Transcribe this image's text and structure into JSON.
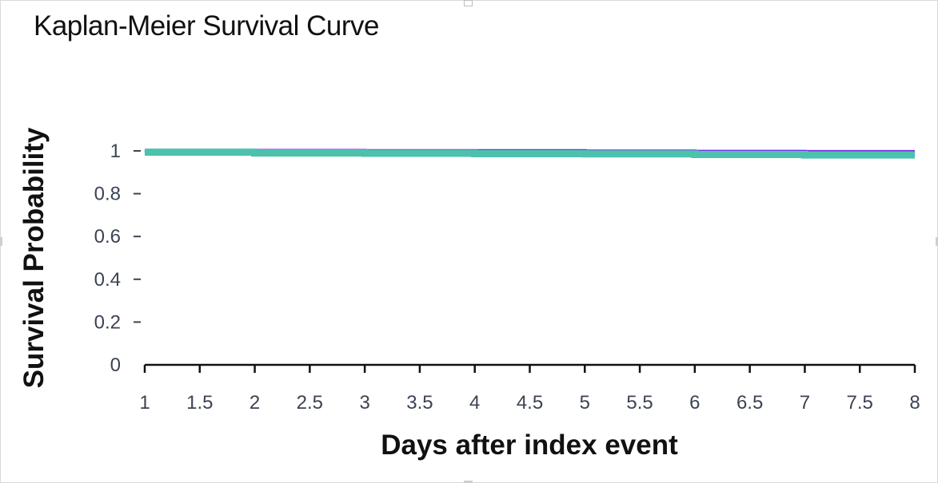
{
  "chart_data": {
    "type": "line",
    "step": true,
    "title": "Kaplan-Meier Survival Curve",
    "xlabel": "Days after index event",
    "ylabel": "Survival Probability",
    "xlim": [
      1,
      8
    ],
    "ylim": [
      0,
      1
    ],
    "xticks": [
      "1",
      "1.5",
      "2",
      "2.5",
      "3",
      "3.5",
      "4",
      "4.5",
      "5",
      "5.5",
      "6",
      "6.5",
      "7",
      "7.5",
      "8"
    ],
    "yticks": [
      "0",
      "0.2",
      "0.4",
      "0.6",
      "0.8",
      "1"
    ],
    "series": [
      {
        "color": "#7b2ff0",
        "x": [
          1,
          2,
          3,
          4,
          5,
          6,
          7,
          8
        ],
        "y": [
          1.0,
          1.0,
          0.999,
          0.999,
          0.997,
          0.996,
          0.995,
          0.995
        ]
      },
      {
        "color": "#4cc2ad",
        "x": [
          1,
          2,
          3,
          4,
          5,
          6,
          7,
          8
        ],
        "y": [
          0.994,
          0.99,
          0.989,
          0.987,
          0.986,
          0.983,
          0.981,
          0.981
        ]
      }
    ],
    "legend": "none",
    "grid": false
  }
}
